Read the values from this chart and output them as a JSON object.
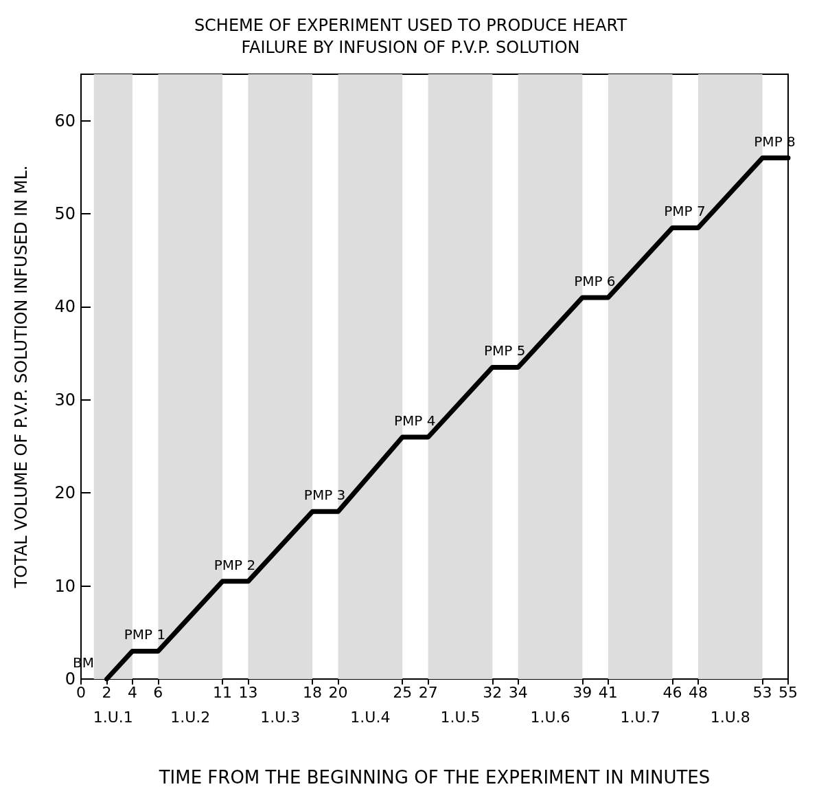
{
  "chart_data": {
    "type": "line",
    "title": "SCHEME OF EXPERIMENT USED TO PRODUCE HEART\nFAILURE BY INFUSION OF P.V.P. SOLUTION",
    "xlabel": "TIME FROM THE BEGINNING OF THE EXPERIMENT IN MINUTES",
    "ylabel": "TOTAL VOLUME OF P.V.P. SOLUTION INFUSED IN ML.",
    "x": [
      2,
      4,
      6,
      11,
      13,
      18,
      20,
      25,
      27,
      32,
      34,
      39,
      41,
      46,
      48,
      53,
      55
    ],
    "series": [
      {
        "color": "#000000",
        "values": [
          0,
          3,
          3,
          10.5,
          10.5,
          18,
          18,
          26,
          26,
          33.5,
          33.5,
          41,
          41,
          48.5,
          48.5,
          56,
          56
        ]
      }
    ],
    "xlim": [
      0,
      55
    ],
    "xticks": [
      0,
      2,
      4,
      6,
      11,
      13,
      18,
      20,
      25,
      27,
      32,
      34,
      39,
      41,
      46,
      48,
      53,
      55
    ],
    "ylim": [
      0,
      65
    ],
    "yticks": [
      0,
      10,
      20,
      30,
      40,
      50,
      60
    ],
    "bands": [
      {
        "axis": "x",
        "from": 1,
        "to": 4,
        "label": "1.U.1",
        "color": "#dddddd"
      },
      {
        "axis": "x",
        "from": 6,
        "to": 11,
        "label": "1.U.2",
        "color": "#dddddd"
      },
      {
        "axis": "x",
        "from": 13,
        "to": 18,
        "label": "1.U.3",
        "color": "#dddddd"
      },
      {
        "axis": "x",
        "from": 20,
        "to": 25,
        "label": "1.U.4",
        "color": "#dddddd"
      },
      {
        "axis": "x",
        "from": 27,
        "to": 32,
        "label": "1.U.5",
        "color": "#dddddd"
      },
      {
        "axis": "x",
        "from": 34,
        "to": 39,
        "label": "1.U.6",
        "color": "#dddddd"
      },
      {
        "axis": "x",
        "from": 41,
        "to": 46,
        "label": "1.U.7",
        "color": "#dddddd"
      },
      {
        "axis": "x",
        "from": 48,
        "to": 53,
        "label": "1.U.8",
        "color": "#dddddd"
      }
    ],
    "annotations": [
      {
        "text": "BM",
        "x": 2,
        "y": 0
      },
      {
        "text": "PMP 1",
        "x": 4,
        "y": 3
      },
      {
        "text": "PMP 2",
        "x": 11,
        "y": 10.5
      },
      {
        "text": "PMP 3",
        "x": 18,
        "y": 18
      },
      {
        "text": "PMP 4",
        "x": 25,
        "y": 26
      },
      {
        "text": "PMP 5",
        "x": 32,
        "y": 33.5
      },
      {
        "text": "PMP 6",
        "x": 39,
        "y": 41
      },
      {
        "text": "PMP 7",
        "x": 46,
        "y": 48.5
      },
      {
        "text": "PMP 8",
        "x": 53,
        "y": 56
      }
    ],
    "grid": false,
    "marker": "none",
    "line_style": "solid"
  }
}
